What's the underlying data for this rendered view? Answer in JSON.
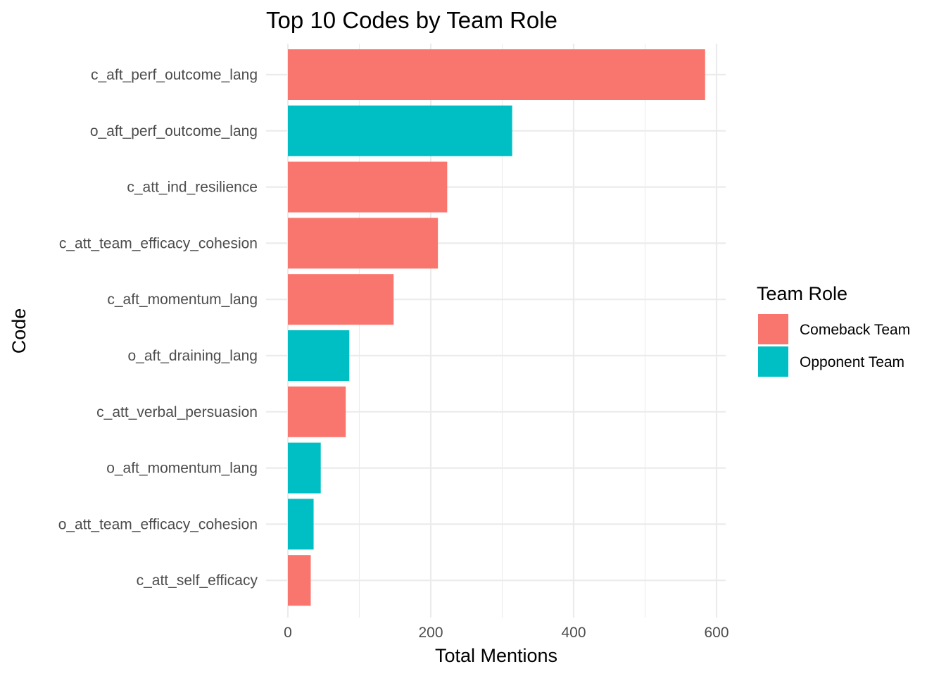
{
  "chart_data": {
    "type": "bar",
    "orientation": "horizontal",
    "title": "Top 10 Codes by Team Role",
    "xlabel": "Total Mentions",
    "ylabel": "Code",
    "xlim": [
      0,
      600
    ],
    "xticks": [
      0,
      200,
      400,
      600
    ],
    "grid": true,
    "legend": {
      "title": "Team Role",
      "placement": "right",
      "entries": [
        {
          "name": "Comeback Team",
          "color": "#F8766D"
        },
        {
          "name": "Opponent Team",
          "color": "#00BFC4"
        }
      ]
    },
    "categories": [
      "c_aft_perf_outcome_lang",
      "o_aft_perf_outcome_lang",
      "c_att_ind_resilience",
      "c_att_team_efficacy_cohesion",
      "c_aft_momentum_lang",
      "o_aft_draining_lang",
      "c_att_verbal_persuasion",
      "o_aft_momentum_lang",
      "o_att_team_efficacy_cohesion",
      "c_att_self_efficacy"
    ],
    "values": [
      584,
      314,
      223,
      210,
      148,
      86,
      81,
      46,
      36,
      32
    ],
    "groups": [
      "Comeback Team",
      "Opponent Team",
      "Comeback Team",
      "Comeback Team",
      "Comeback Team",
      "Opponent Team",
      "Comeback Team",
      "Opponent Team",
      "Opponent Team",
      "Comeback Team"
    ]
  }
}
